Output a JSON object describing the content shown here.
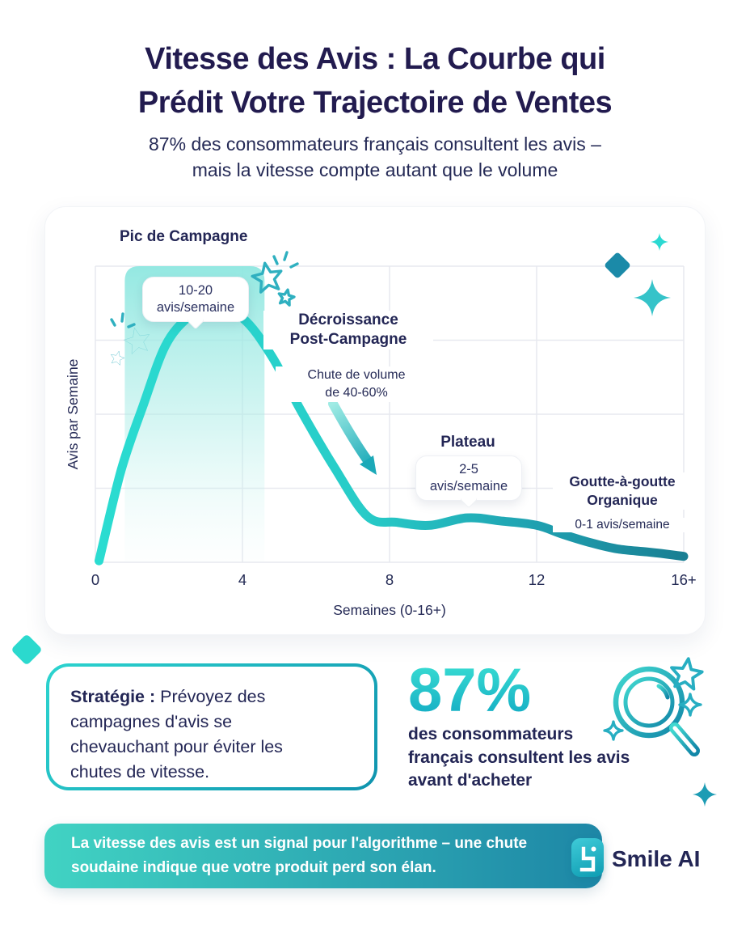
{
  "header": {
    "title_line1": "Vitesse des Avis : La Courbe qui",
    "title_line2": "Prédit Votre Trajectoire de Ventes",
    "subtitle_line1": "87% des consommateurs français consultent les avis –",
    "subtitle_line2": "mais la vitesse compte autant que le volume"
  },
  "chart_data": {
    "type": "line",
    "title": "Vitesse des avis",
    "xlabel": "Semaines (0-16+)",
    "ylabel": "Avis par Semaine",
    "xlim": [
      0,
      16
    ],
    "ylim": [
      0,
      20
    ],
    "grid": true,
    "x_ticks": [
      {
        "week": 0,
        "label": "0"
      },
      {
        "week": 4,
        "label": "4"
      },
      {
        "week": 8,
        "label": "8"
      },
      {
        "week": 12,
        "label": "12"
      },
      {
        "week": 16,
        "label": "16+"
      }
    ],
    "y_gridline_values": [
      0,
      5,
      10,
      15,
      20
    ],
    "campaign_highlight_weeks": [
      0.8,
      4.6
    ],
    "curve_points": [
      [
        0.1,
        0.1
      ],
      [
        0.7,
        6.2
      ],
      [
        1.3,
        10.6
      ],
      [
        1.9,
        14.6
      ],
      [
        2.5,
        16.5
      ],
      [
        3.1,
        17.3
      ],
      [
        4.0,
        16.5
      ],
      [
        4.8,
        13.9
      ],
      [
        5.6,
        10.2
      ],
      [
        6.5,
        6.4
      ],
      [
        7.4,
        3.1
      ],
      [
        8.2,
        2.7
      ],
      [
        9.1,
        2.5
      ],
      [
        10.1,
        3.0
      ],
      [
        11.0,
        2.8
      ],
      [
        12.0,
        2.5
      ],
      [
        12.7,
        1.9
      ],
      [
        13.5,
        1.3
      ],
      [
        14.2,
        0.9
      ],
      [
        15.0,
        0.7
      ],
      [
        15.7,
        0.5
      ],
      [
        16.0,
        0.4
      ]
    ],
    "annotations": {
      "peak": {
        "title": "Pic de Campagne",
        "callout_line1": "10-20",
        "callout_line2": "avis/semaine"
      },
      "decline": {
        "title_line1": "Décroissance",
        "title_line2": "Post-Campagne",
        "note_line1": "Chute de volume",
        "note_line2": "de 40-60%"
      },
      "plateau": {
        "title": "Plateau",
        "callout_line1": "2-5",
        "callout_line2": "avis/semaine"
      },
      "organic": {
        "title_line1": "Goutte-à-goutte",
        "title_line2": "Organique",
        "note": "0-1 avis/semaine"
      }
    }
  },
  "strategy": {
    "label": "Stratégie :",
    "line1": "Prévoyez des",
    "line2": "campagnes d'avis se",
    "line3": "chevauchant pour éviter les",
    "line4": "chutes de vitesse."
  },
  "stat": {
    "value": "87%",
    "line1": "des consommateurs",
    "line2": "français consultent les avis",
    "line3": "avant d'acheter"
  },
  "banner": {
    "line1": "La vitesse des avis est un signal pour l'algorithme – une chute",
    "line2": "soudaine indique que votre produit perd son élan.",
    "brand": "Smile AI"
  },
  "colors": {
    "navy": "#232655",
    "teal_bright": "#2bd9ce",
    "teal_dark": "#1b86a0",
    "curve_gradient_start": "#2bdcd1",
    "curve_gradient_end": "#197f93",
    "highlight_band": "#8ee7e0",
    "banner_gradient_start": "#41d3c3",
    "banner_gradient_end": "#1d86a6"
  }
}
